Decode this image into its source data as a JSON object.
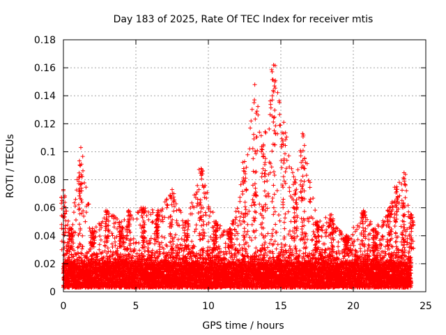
{
  "chart_data": {
    "type": "scatter",
    "title": "Day 183 of 2025, Rate Of TEC Index for receiver mtis",
    "xlabel": "GPS time / hours",
    "ylabel": "ROTI / TECUs",
    "xlim": [
      0,
      25
    ],
    "ylim": [
      0,
      0.18
    ],
    "xticks": [
      0,
      5,
      10,
      15,
      20,
      25
    ],
    "yticks": [
      0,
      0.02,
      0.04,
      0.06,
      0.08,
      0.1,
      0.12,
      0.14,
      0.16,
      0.18
    ],
    "xtick_labels": [
      "0",
      "5",
      "10",
      "15",
      "20",
      "25"
    ],
    "ytick_labels": [
      "0",
      "0.02",
      "0.04",
      "0.06",
      "0.08",
      "0.1",
      "0.12",
      "0.14",
      "0.16",
      "0.18"
    ],
    "grid": true,
    "marker": "+",
    "marker_color": "#ff0000",
    "data_x_range": [
      0,
      24
    ],
    "baseline_band": [
      0.003,
      0.02
    ],
    "envelope": [
      {
        "x": 0.0,
        "y": 0.073
      },
      {
        "x": 0.5,
        "y": 0.045
      },
      {
        "x": 1.2,
        "y": 0.103
      },
      {
        "x": 2.0,
        "y": 0.045
      },
      {
        "x": 3.0,
        "y": 0.058
      },
      {
        "x": 4.0,
        "y": 0.05
      },
      {
        "x": 4.5,
        "y": 0.058
      },
      {
        "x": 5.5,
        "y": 0.06
      },
      {
        "x": 6.5,
        "y": 0.058
      },
      {
        "x": 7.5,
        "y": 0.073
      },
      {
        "x": 8.5,
        "y": 0.05
      },
      {
        "x": 9.5,
        "y": 0.088
      },
      {
        "x": 10.5,
        "y": 0.05
      },
      {
        "x": 11.5,
        "y": 0.045
      },
      {
        "x": 12.5,
        "y": 0.093
      },
      {
        "x": 13.2,
        "y": 0.148
      },
      {
        "x": 13.8,
        "y": 0.105
      },
      {
        "x": 14.5,
        "y": 0.162
      },
      {
        "x": 15.2,
        "y": 0.121
      },
      {
        "x": 16.0,
        "y": 0.08
      },
      {
        "x": 16.5,
        "y": 0.113
      },
      {
        "x": 17.5,
        "y": 0.05
      },
      {
        "x": 18.5,
        "y": 0.055
      },
      {
        "x": 19.5,
        "y": 0.04
      },
      {
        "x": 20.7,
        "y": 0.058
      },
      {
        "x": 21.5,
        "y": 0.045
      },
      {
        "x": 22.5,
        "y": 0.06
      },
      {
        "x": 23.0,
        "y": 0.075
      },
      {
        "x": 23.5,
        "y": 0.085
      },
      {
        "x": 24.0,
        "y": 0.055
      }
    ]
  }
}
